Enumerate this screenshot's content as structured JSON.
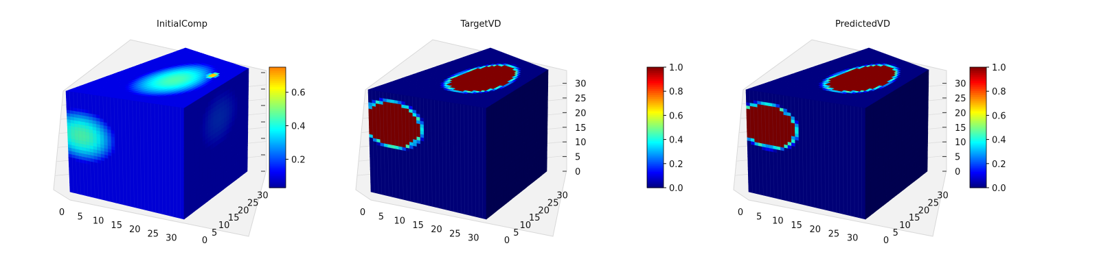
{
  "figure": {
    "panels": [
      {
        "title": "InitialComp"
      },
      {
        "title": "TargetVD"
      },
      {
        "title": "PredictedVD"
      }
    ]
  },
  "chart_data": [
    {
      "type": "heatmap",
      "subtype": "3d-voxel-cube",
      "title": "InitialComp",
      "colormap": "jet",
      "grid": true,
      "x_ticks": [
        "0",
        "5",
        "10",
        "15",
        "20",
        "25",
        "30"
      ],
      "y_ticks": [
        "0",
        "5",
        "10",
        "15",
        "20",
        "25",
        "30"
      ],
      "z_ticks": [],
      "xlim": [
        0,
        32
      ],
      "ylim": [
        0,
        32
      ],
      "zlim": [
        0,
        32
      ],
      "colorbar": {
        "range": [
          0.03,
          0.75
        ],
        "ticks": [
          "0.2",
          "0.4",
          "0.6"
        ],
        "tick_values": [
          0.2,
          0.4,
          0.6
        ]
      },
      "features": [
        {
          "face": "top",
          "u": 0.5,
          "v": 0.55,
          "radius": 0.38,
          "value": 0.45
        },
        {
          "face": "top",
          "u": 0.72,
          "v": 0.78,
          "radius": 0.07,
          "value": 0.75
        },
        {
          "face": "front",
          "u": 0.12,
          "v": 0.42,
          "radius": 0.3,
          "value": 0.45
        },
        {
          "face": "side",
          "u": 0.55,
          "v": 0.3,
          "radius": 0.3,
          "value": 0.18
        }
      ],
      "background_value": 0.1
    },
    {
      "type": "heatmap",
      "subtype": "3d-voxel-cube",
      "title": "TargetVD",
      "colormap": "jet",
      "grid": true,
      "x_ticks": [
        "0",
        "5",
        "10",
        "15",
        "20",
        "25",
        "30"
      ],
      "y_ticks": [
        "0",
        "5",
        "10",
        "15",
        "20",
        "25",
        "30"
      ],
      "z_ticks": [
        "0",
        "5",
        "10",
        "15",
        "20",
        "25",
        "30"
      ],
      "xlim": [
        0,
        32
      ],
      "ylim": [
        0,
        32
      ],
      "zlim": [
        0,
        32
      ],
      "colorbar": {
        "range": [
          0.0,
          1.0
        ],
        "ticks": [
          "0.0",
          "0.2",
          "0.4",
          "0.6",
          "0.8",
          "1.0"
        ],
        "tick_values": [
          0.0,
          0.2,
          0.4,
          0.6,
          0.8,
          1.0
        ]
      },
      "features": [
        {
          "face": "top",
          "u": 0.55,
          "v": 0.58,
          "radius": 0.32,
          "value": 1.0
        },
        {
          "face": "front",
          "u": 0.2,
          "v": 0.3,
          "radius": 0.26,
          "value": 1.0
        }
      ],
      "background_value": 0.0
    },
    {
      "type": "heatmap",
      "subtype": "3d-voxel-cube",
      "title": "PredictedVD",
      "colormap": "jet",
      "grid": true,
      "x_ticks": [
        "0",
        "5",
        "10",
        "15",
        "20",
        "25",
        "30"
      ],
      "y_ticks": [
        "0",
        "5",
        "10",
        "15",
        "20",
        "25",
        "30"
      ],
      "z_ticks": [
        "0",
        "5",
        "10",
        "15",
        "20",
        "25",
        "30"
      ],
      "xlim": [
        0,
        32
      ],
      "ylim": [
        0,
        32
      ],
      "zlim": [
        0,
        32
      ],
      "colorbar": {
        "range": [
          0.0,
          1.0
        ],
        "ticks": [
          "0.0",
          "0.2",
          "0.4",
          "0.6",
          "0.8",
          "1.0"
        ],
        "tick_values": [
          0.0,
          0.2,
          0.4,
          0.6,
          0.8,
          1.0
        ]
      },
      "features": [
        {
          "face": "top",
          "u": 0.55,
          "v": 0.58,
          "radius": 0.32,
          "value": 1.0
        },
        {
          "face": "front",
          "u": 0.18,
          "v": 0.32,
          "radius": 0.25,
          "value": 1.0
        }
      ],
      "background_value": 0.0
    }
  ]
}
